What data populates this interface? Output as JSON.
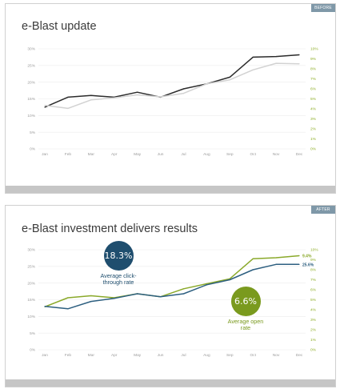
{
  "panels": {
    "before": {
      "tag": "BEFORE",
      "title": "e-Blast update"
    },
    "after": {
      "tag": "AFTER",
      "title": "e-Blast investment delivers results"
    }
  },
  "callouts": {
    "click_through": {
      "value": "18.3%",
      "label": "Average click-through rate",
      "color": "#1f4e6e"
    },
    "open_rate": {
      "value": "6.6%",
      "label": "Average open rate",
      "color": "#7a9a1e"
    }
  },
  "chart_data": [
    {
      "type": "line",
      "title": "e-Blast update",
      "categories": [
        "Jan",
        "Feb",
        "Mar",
        "Apr",
        "May",
        "Jun",
        "Jul",
        "Aug",
        "Sep",
        "Oct",
        "Nov",
        "Dec"
      ],
      "y_left": {
        "ticks": [
          "0%",
          "5%",
          "10%",
          "15%",
          "20%",
          "25%",
          "30%"
        ],
        "lim": [
          0,
          30
        ]
      },
      "y_right": {
        "ticks": [
          "0%",
          "1%",
          "2%",
          "3%",
          "4%",
          "5%",
          "6%",
          "7%",
          "8%",
          "9%",
          "10%"
        ],
        "lim": [
          0,
          10
        ]
      },
      "grid": true,
      "series": [
        {
          "axis": "left",
          "color": "#2b2b2b",
          "values": [
            12.5,
            15.5,
            16.0,
            15.5,
            17.0,
            15.5,
            18.0,
            19.5,
            21.5,
            27.5,
            27.7,
            28.2
          ]
        },
        {
          "axis": "right",
          "color": "#d2d2d2",
          "values": [
            4.35,
            4.05,
            4.9,
            5.1,
            5.4,
            5.2,
            5.55,
            6.5,
            6.9,
            7.9,
            8.55,
            8.5
          ]
        }
      ]
    },
    {
      "type": "line",
      "title": "e-Blast investment delivers results",
      "categories": [
        "Jan",
        "Feb",
        "Mar",
        "Apr",
        "May",
        "Jun",
        "Jul",
        "Aug",
        "Sep",
        "Oct",
        "Nov",
        "Dec"
      ],
      "y_left": {
        "ticks": [
          "0%",
          "5%",
          "10%",
          "15%",
          "20%",
          "25%",
          "30%"
        ],
        "lim": [
          0,
          30
        ]
      },
      "y_right": {
        "ticks": [
          "0%",
          "1%",
          "2%",
          "3%",
          "4%",
          "5%",
          "6%",
          "7%",
          "8%",
          "9%",
          "10%"
        ],
        "lim": [
          0,
          10
        ]
      },
      "grid": true,
      "series": [
        {
          "axis": "right",
          "color": "#8aa92a",
          "values": [
            4.3,
            5.2,
            5.4,
            5.2,
            5.6,
            5.3,
            6.1,
            6.6,
            7.1,
            9.1,
            9.2,
            9.4
          ],
          "end_label": "9.4%"
        },
        {
          "axis": "left",
          "color": "#2d5f80",
          "values": [
            13.0,
            12.3,
            14.5,
            15.4,
            16.8,
            15.9,
            16.8,
            19.5,
            21.0,
            24.0,
            25.6,
            25.6
          ],
          "end_label": "25.6%"
        }
      ]
    }
  ]
}
